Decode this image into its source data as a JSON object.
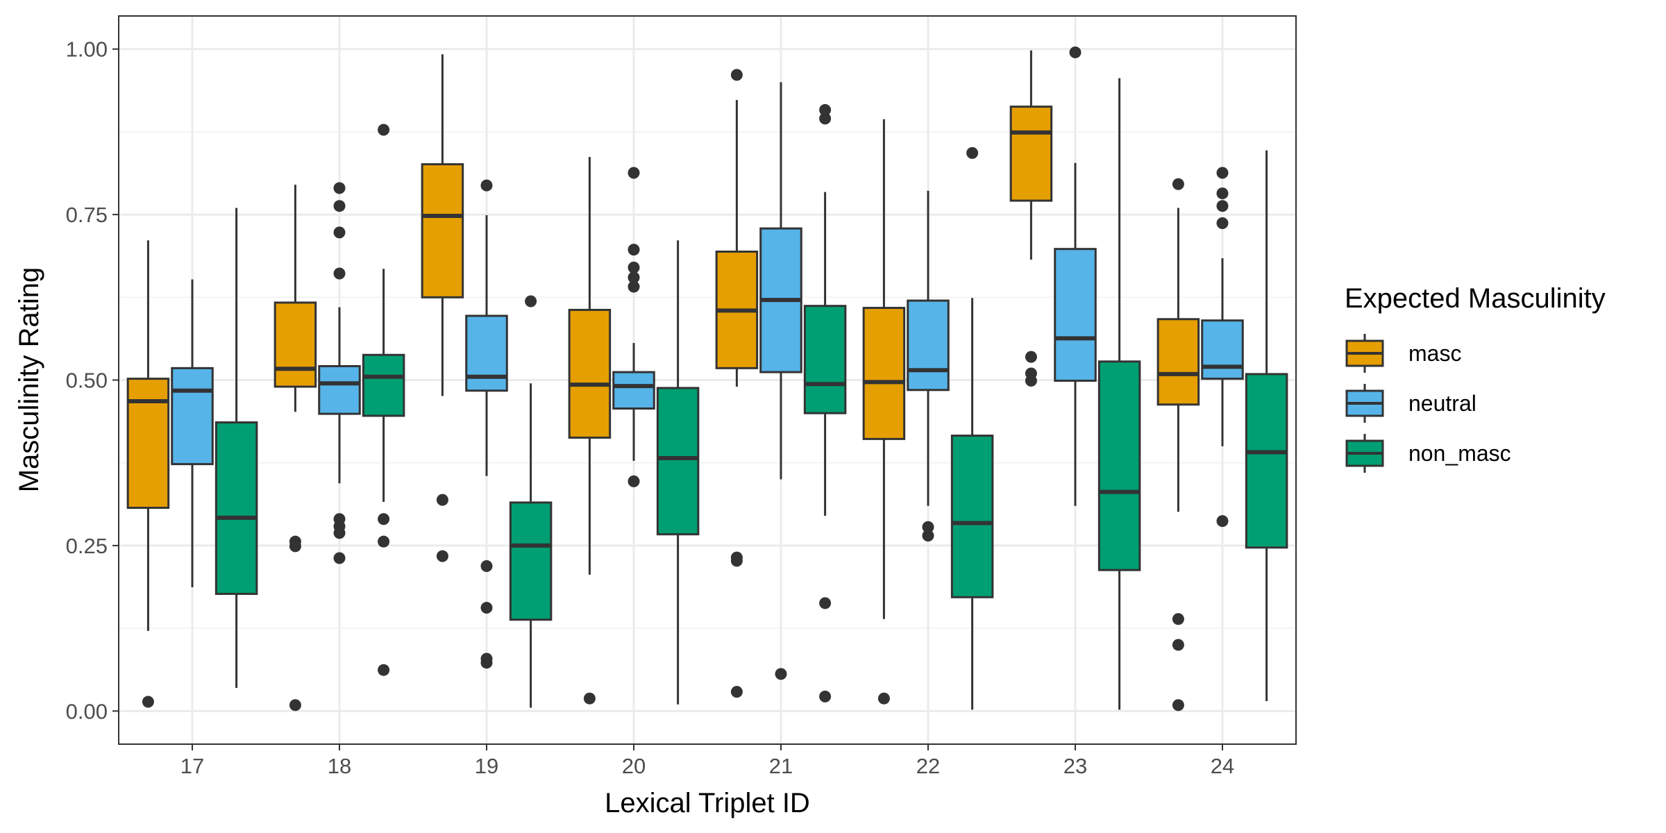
{
  "chart_data": {
    "type": "boxplot",
    "title": "",
    "xlabel": "Lexical Triplet ID",
    "ylabel": "Masculinity Rating",
    "categories": [
      "17",
      "18",
      "19",
      "20",
      "21",
      "22",
      "23",
      "24"
    ],
    "ylim": [
      -0.05,
      1.05
    ],
    "yticks": [
      0.0,
      0.25,
      0.5,
      0.75,
      1.0
    ],
    "ytick_labels": [
      "0.00",
      "0.25",
      "0.50",
      "0.75",
      "1.00"
    ],
    "grid": true,
    "legend": {
      "title": "Expected Masculinity",
      "position": "right"
    },
    "series": [
      {
        "name": "masc",
        "color": "#E69F00",
        "boxes": [
          {
            "q1": 0.307,
            "median": 0.468,
            "q3": 0.502,
            "whisker_low": 0.121,
            "whisker_high": 0.711,
            "outliers": [
              0.014
            ]
          },
          {
            "q1": 0.49,
            "median": 0.517,
            "q3": 0.617,
            "whisker_low": 0.452,
            "whisker_high": 0.795,
            "outliers": [
              0.009,
              0.249,
              0.256
            ]
          },
          {
            "q1": 0.625,
            "median": 0.748,
            "q3": 0.826,
            "whisker_low": 0.476,
            "whisker_high": 0.992,
            "outliers": [
              0.234,
              0.319
            ]
          },
          {
            "q1": 0.413,
            "median": 0.493,
            "q3": 0.606,
            "whisker_low": 0.206,
            "whisker_high": 0.837,
            "outliers": [
              0.019
            ]
          },
          {
            "q1": 0.518,
            "median": 0.605,
            "q3": 0.694,
            "whisker_low": 0.49,
            "whisker_high": 0.923,
            "outliers": [
              0.029,
              0.227,
              0.232,
              0.961
            ]
          },
          {
            "q1": 0.411,
            "median": 0.497,
            "q3": 0.609,
            "whisker_low": 0.139,
            "whisker_high": 0.894,
            "outliers": [
              0.019
            ]
          },
          {
            "q1": 0.771,
            "median": 0.874,
            "q3": 0.913,
            "whisker_low": 0.682,
            "whisker_high": 0.998,
            "outliers": [
              0.499,
              0.51,
              0.535
            ]
          },
          {
            "q1": 0.463,
            "median": 0.509,
            "q3": 0.592,
            "whisker_low": 0.301,
            "whisker_high": 0.76,
            "outliers": [
              0.009,
              0.1,
              0.139,
              0.796
            ]
          }
        ]
      },
      {
        "name": "neutral",
        "color": "#56B4E9",
        "boxes": [
          {
            "q1": 0.373,
            "median": 0.484,
            "q3": 0.518,
            "whisker_low": 0.187,
            "whisker_high": 0.652,
            "outliers": []
          },
          {
            "q1": 0.449,
            "median": 0.495,
            "q3": 0.521,
            "whisker_low": 0.344,
            "whisker_high": 0.61,
            "outliers": [
              0.231,
              0.269,
              0.279,
              0.29,
              0.661,
              0.723,
              0.763,
              0.79
            ]
          },
          {
            "q1": 0.484,
            "median": 0.505,
            "q3": 0.597,
            "whisker_low": 0.355,
            "whisker_high": 0.749,
            "outliers": [
              0.073,
              0.079,
              0.156,
              0.219,
              0.794
            ]
          },
          {
            "q1": 0.457,
            "median": 0.491,
            "q3": 0.512,
            "whisker_low": 0.378,
            "whisker_high": 0.556,
            "outliers": [
              0.347,
              0.641,
              0.655,
              0.67,
              0.697,
              0.813
            ]
          },
          {
            "q1": 0.512,
            "median": 0.621,
            "q3": 0.729,
            "whisker_low": 0.35,
            "whisker_high": 0.95,
            "outliers": [
              0.056
            ]
          },
          {
            "q1": 0.485,
            "median": 0.515,
            "q3": 0.62,
            "whisker_low": 0.31,
            "whisker_high": 0.786,
            "outliers": [
              0.265,
              0.278
            ]
          },
          {
            "q1": 0.499,
            "median": 0.563,
            "q3": 0.698,
            "whisker_low": 0.31,
            "whisker_high": 0.828,
            "outliers": [
              0.995
            ]
          },
          {
            "q1": 0.502,
            "median": 0.52,
            "q3": 0.59,
            "whisker_low": 0.4,
            "whisker_high": 0.684,
            "outliers": [
              0.287,
              0.737,
              0.763,
              0.782,
              0.813
            ]
          }
        ]
      },
      {
        "name": "non_masc",
        "color": "#009E73",
        "boxes": [
          {
            "q1": 0.177,
            "median": 0.292,
            "q3": 0.436,
            "whisker_low": 0.035,
            "whisker_high": 0.76,
            "outliers": []
          },
          {
            "q1": 0.446,
            "median": 0.505,
            "q3": 0.538,
            "whisker_low": 0.316,
            "whisker_high": 0.668,
            "outliers": [
              0.062,
              0.256,
              0.29,
              0.878
            ]
          },
          {
            "q1": 0.138,
            "median": 0.25,
            "q3": 0.315,
            "whisker_low": 0.005,
            "whisker_high": 0.495,
            "outliers": [
              0.619
            ]
          },
          {
            "q1": 0.267,
            "median": 0.382,
            "q3": 0.488,
            "whisker_low": 0.01,
            "whisker_high": 0.711,
            "outliers": []
          },
          {
            "q1": 0.45,
            "median": 0.494,
            "q3": 0.612,
            "whisker_low": 0.295,
            "whisker_high": 0.784,
            "outliers": [
              0.022,
              0.163,
              0.895,
              0.908
            ]
          },
          {
            "q1": 0.172,
            "median": 0.284,
            "q3": 0.416,
            "whisker_low": 0.002,
            "whisker_high": 0.624,
            "outliers": [
              0.843
            ]
          },
          {
            "q1": 0.213,
            "median": 0.331,
            "q3": 0.528,
            "whisker_low": 0.002,
            "whisker_high": 0.956,
            "outliers": []
          },
          {
            "q1": 0.247,
            "median": 0.391,
            "q3": 0.509,
            "whisker_low": 0.015,
            "whisker_high": 0.847,
            "outliers": []
          }
        ]
      }
    ]
  }
}
